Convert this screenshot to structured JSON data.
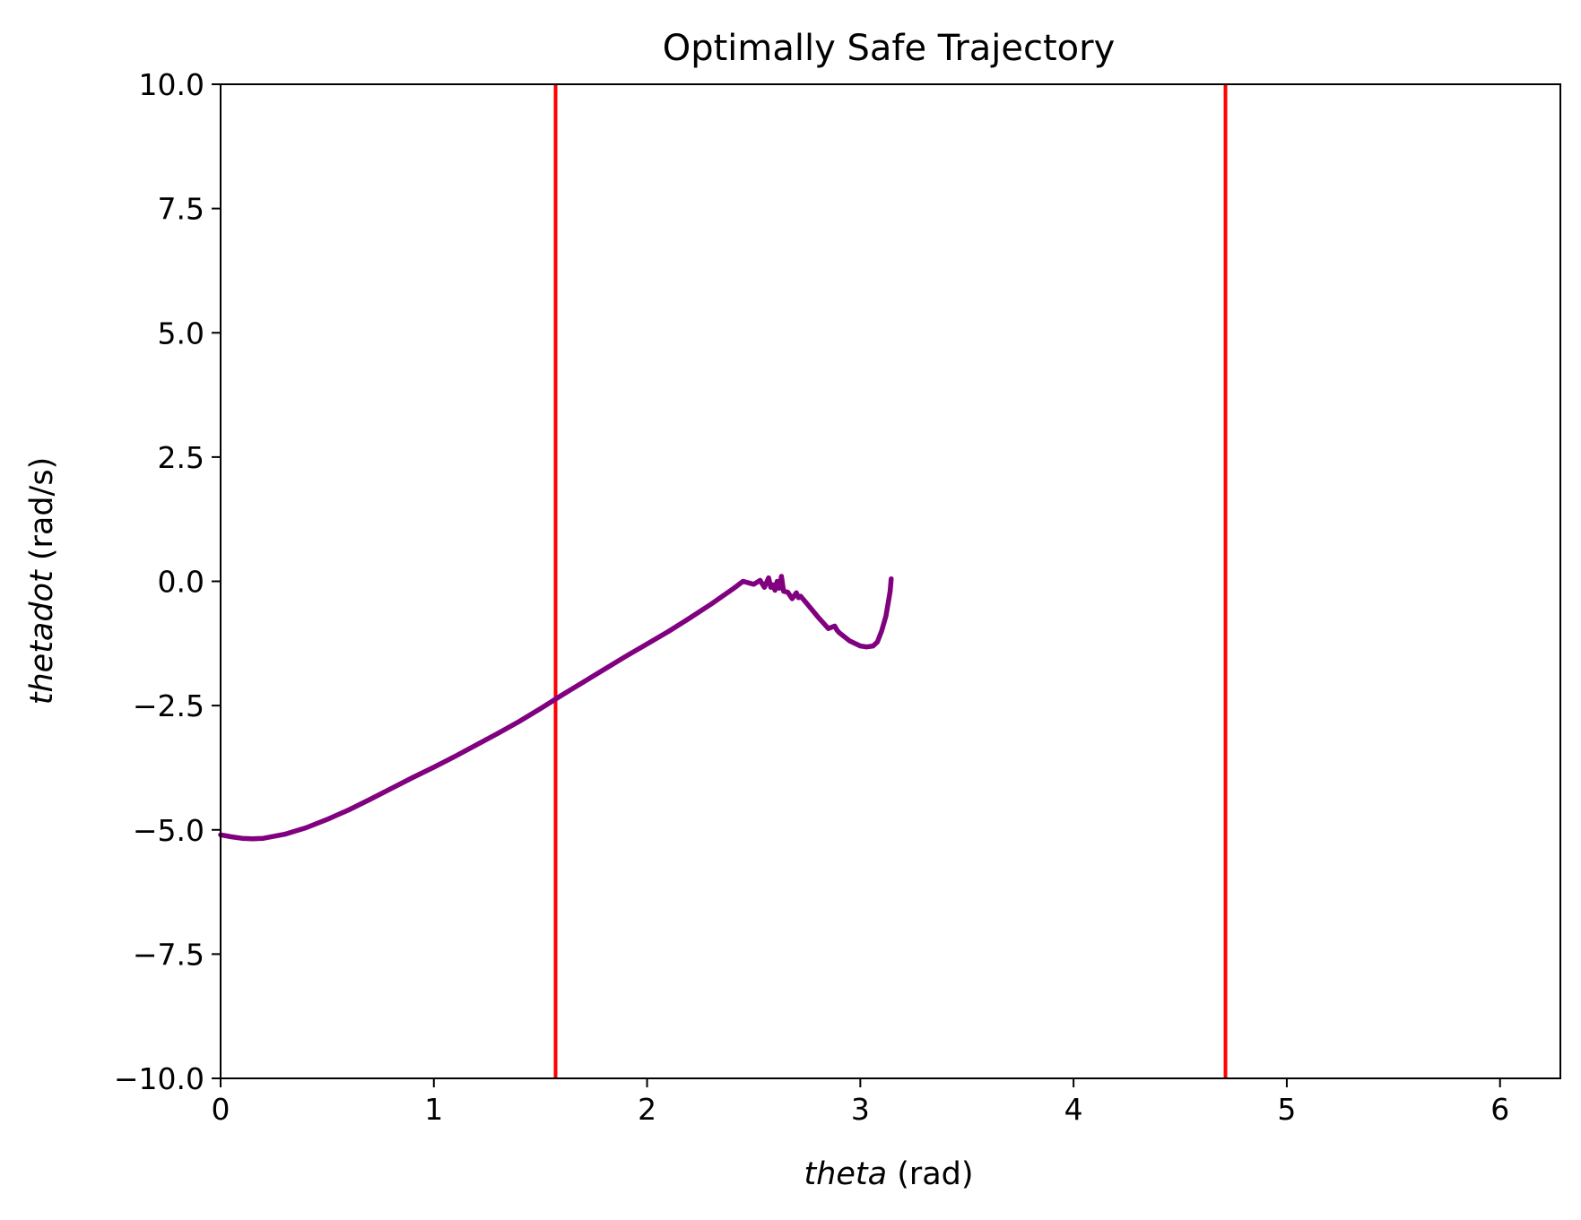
{
  "chart_data": {
    "type": "line",
    "title": "Optimally Safe Trajectory",
    "xlabel": {
      "var": "theta",
      "unit": " (rad)"
    },
    "ylabel": {
      "var": "thetadot",
      "unit": " (rad/s)"
    },
    "xlim": [
      0,
      6.283
    ],
    "ylim": [
      -10,
      10
    ],
    "xticks": [
      0,
      1,
      2,
      3,
      4,
      5,
      6
    ],
    "xtick_labels": [
      "0",
      "1",
      "2",
      "3",
      "4",
      "5",
      "6"
    ],
    "yticks": [
      -10,
      -7.5,
      -5,
      -2.5,
      0,
      2.5,
      5,
      7.5,
      10
    ],
    "ytick_labels": [
      "−10.0",
      "−7.5",
      "−5.0",
      "−2.5",
      "0.0",
      "2.5",
      "5.0",
      "7.5",
      "10.0"
    ],
    "grid": false,
    "legend": "none",
    "vlines": [
      {
        "x": 1.5708,
        "color": "#ff0000"
      },
      {
        "x": 4.7124,
        "color": "#ff0000"
      }
    ],
    "series": [
      {
        "color": "#800080",
        "x": [
          0.0,
          0.05,
          0.1,
          0.15,
          0.2,
          0.3,
          0.4,
          0.5,
          0.6,
          0.7,
          0.8,
          0.9,
          1.0,
          1.1,
          1.2,
          1.3,
          1.4,
          1.5,
          1.6,
          1.7,
          1.8,
          1.9,
          2.0,
          2.1,
          2.2,
          2.3,
          2.4,
          2.45,
          2.5,
          2.53,
          2.55,
          2.57,
          2.58,
          2.59,
          2.6,
          2.61,
          2.62,
          2.63,
          2.64,
          2.66,
          2.68,
          2.7,
          2.71,
          2.72,
          2.75,
          2.8,
          2.85,
          2.88,
          2.89,
          2.9,
          2.95,
          3.0,
          3.03,
          3.06,
          3.08,
          3.1,
          3.12,
          3.13,
          3.14,
          3.145
        ],
        "y": [
          -5.1,
          -5.14,
          -5.17,
          -5.18,
          -5.17,
          -5.09,
          -4.96,
          -4.79,
          -4.6,
          -4.39,
          -4.17,
          -3.95,
          -3.74,
          -3.52,
          -3.29,
          -3.06,
          -2.82,
          -2.56,
          -2.29,
          -2.03,
          -1.77,
          -1.51,
          -1.26,
          -1.01,
          -0.74,
          -0.46,
          -0.16,
          0.0,
          -0.06,
          0.02,
          -0.12,
          0.07,
          -0.12,
          -0.07,
          -0.18,
          0.0,
          -0.14,
          0.1,
          -0.2,
          -0.22,
          -0.35,
          -0.23,
          -0.33,
          -0.3,
          -0.45,
          -0.71,
          -0.95,
          -0.9,
          -0.98,
          -1.03,
          -1.2,
          -1.3,
          -1.32,
          -1.3,
          -1.22,
          -1.0,
          -0.7,
          -0.45,
          -0.2,
          0.05
        ]
      }
    ]
  }
}
